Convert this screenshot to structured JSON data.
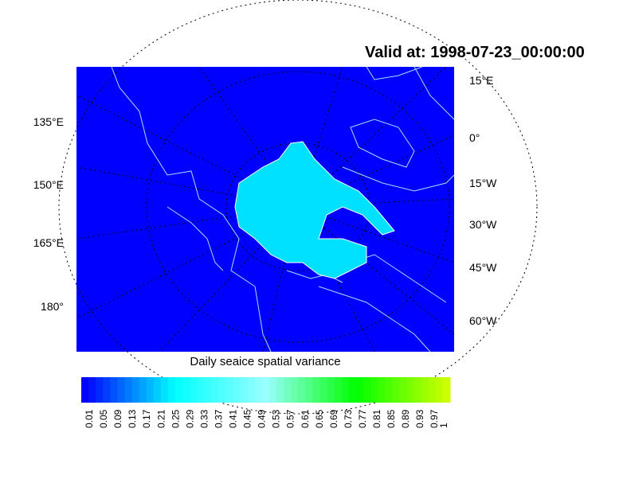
{
  "title": "Valid at: 1998-07-23_00:00:00",
  "map": {
    "background_color": "#0000ff",
    "coastline_color": "#a0e0ff",
    "ice_color": "#00e0ff",
    "left_labels": [
      "135°E",
      "150°E",
      "165°E",
      "180°"
    ],
    "right_labels": [
      "15°E",
      "0°",
      "15°W",
      "30°W",
      "45°W",
      "60°W"
    ]
  },
  "colorbar": {
    "title": "Daily seaice spatial variance",
    "labels": [
      "0.01",
      "0.05",
      "0.09",
      "0.13",
      "0.17",
      "0.21",
      "0.25",
      "0.29",
      "0.33",
      "0.37",
      "0.41",
      "0.45",
      "0.49",
      "0.53",
      "0.57",
      "0.61",
      "0.65",
      "0.69",
      "0.73",
      "0.77",
      "0.81",
      "0.85",
      "0.89",
      "0.93",
      "0.97",
      "1"
    ],
    "color_stops": [
      "#0000ff",
      "#00ffff",
      "#99ffff",
      "#00ff00",
      "#ccff00"
    ]
  }
}
